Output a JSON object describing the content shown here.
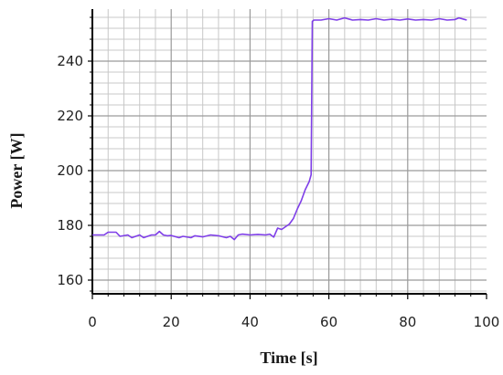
{
  "chart_data": {
    "type": "line",
    "xlabel": "Time [s]",
    "ylabel": "Power [W]",
    "xlim": [
      0,
      100
    ],
    "ylim": [
      155,
      259
    ],
    "xticks": [
      0,
      20,
      40,
      60,
      80,
      100
    ],
    "yticks": [
      160,
      180,
      200,
      220,
      240
    ],
    "grid": true,
    "minor_grid": true,
    "colors": {
      "line": "#7f3fe8",
      "major_grid": "#9a9a9a",
      "minor_grid": "#c8c8c8",
      "axis": "#000000"
    },
    "series": [
      {
        "x": [
          0,
          3,
          4,
          6,
          7,
          9,
          10,
          12,
          13,
          15,
          16,
          17,
          18,
          19,
          20,
          22,
          23,
          25,
          26,
          28,
          30,
          32,
          34,
          35,
          36,
          37,
          38,
          40,
          42,
          44,
          45,
          46,
          47,
          48,
          49,
          50,
          51,
          52,
          53,
          54,
          55,
          55.5,
          55.8,
          56.2,
          58,
          60,
          62,
          64,
          66,
          68,
          70,
          72,
          74,
          76,
          78,
          80,
          82,
          84,
          86,
          88,
          90,
          92,
          93,
          95
        ],
        "y": [
          176.5,
          176.5,
          177.5,
          177.5,
          176,
          176.5,
          175.5,
          176.5,
          175.5,
          176.5,
          176.5,
          177.8,
          176.5,
          176.2,
          176.3,
          175.5,
          176,
          175.5,
          176.2,
          175.8,
          176.5,
          176.2,
          175.5,
          176,
          174.8,
          176.5,
          176.8,
          176.5,
          176.7,
          176.5,
          176.8,
          175.7,
          179,
          178.5,
          179.5,
          180.5,
          182.5,
          186,
          189,
          193,
          196,
          198.5,
          254.5,
          255,
          255,
          255.5,
          255,
          255.8,
          255,
          255.2,
          255,
          255.5,
          255,
          255.3,
          255,
          255.4,
          255,
          255.2,
          255,
          255.5,
          255,
          255.2,
          255.8,
          255
        ]
      }
    ]
  }
}
